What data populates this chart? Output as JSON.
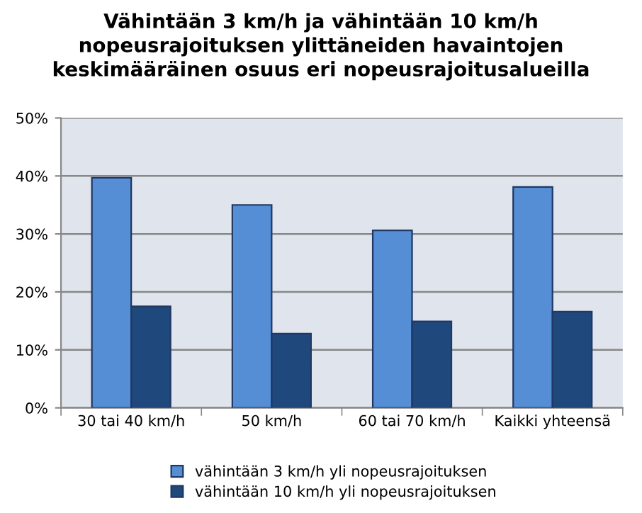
{
  "chart_data": {
    "type": "bar",
    "title": "Vähintään 3 km/h ja vähintään 10 km/h\nnopeusrajoituksen ylittäneiden havaintojen\nkeskimääräinen osuus eri nopeusrajoitusalueilla",
    "categories": [
      "30 tai 40 km/h",
      "50 km/h",
      "60 tai 70 km/h",
      "Kaikki yhteensä"
    ],
    "series": [
      {
        "name": "vähintään 3 km/h yli nopeusrajoituksen",
        "color": "#558ed5",
        "values": [
          39.7,
          35.0,
          30.6,
          38.1
        ]
      },
      {
        "name": "vähintään 10 km/h yli nopeusrajoituksen",
        "color": "#1f497d",
        "values": [
          17.5,
          12.8,
          14.9,
          16.6
        ]
      }
    ],
    "ylim": [
      0,
      50
    ],
    "yticks": [
      {
        "value": 0,
        "label": "0%"
      },
      {
        "value": 10,
        "label": "10%"
      },
      {
        "value": 20,
        "label": "20%"
      },
      {
        "value": 30,
        "label": "30%"
      },
      {
        "value": 40,
        "label": "40%"
      },
      {
        "value": 50,
        "label": "50%"
      }
    ],
    "grid": "y",
    "legend": "bottom"
  }
}
